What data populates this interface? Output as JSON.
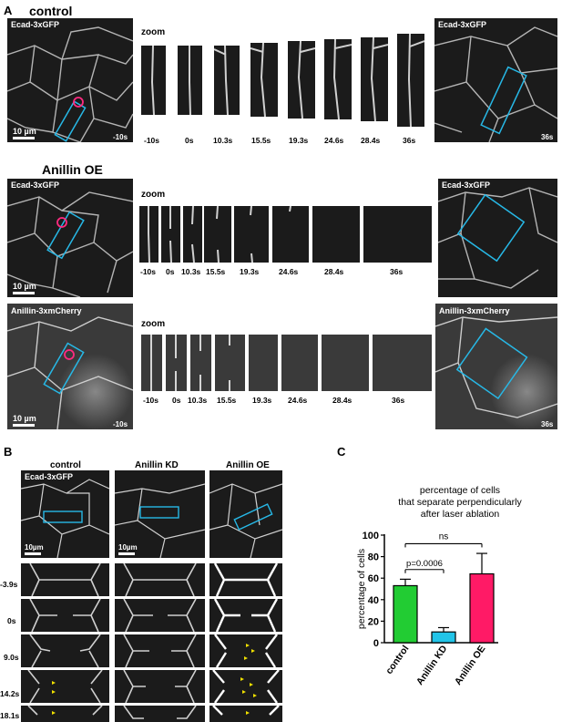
{
  "panels": {
    "a": "A",
    "b": "B",
    "c": "C"
  },
  "sectionA": {
    "control": {
      "title": "control",
      "left_label": "Ecad-3xGFP",
      "right_label": "Ecad-3xGFP",
      "zoom": "zoom",
      "scale": "10 µm",
      "left_time": "-10s",
      "right_time": "36s",
      "times": [
        "-10s",
        "0s",
        "10.3s",
        "15.5s",
        "19.3s",
        "24.6s",
        "28.4s",
        "36s"
      ]
    },
    "oe": {
      "title": "Anillin OE",
      "left_label": "Ecad-3xGFP",
      "right_label": "Ecad-3xGFP",
      "zoom": "zoom",
      "scale": "10 µm",
      "times": [
        "-10s",
        "0s",
        "10.3s",
        "15.5s",
        "19.3s",
        "24.6s",
        "28.4s",
        "36s"
      ]
    },
    "cherry": {
      "left_label": "Anillin-3xmCherry",
      "right_label": "Anillin-3xmCherry",
      "zoom": "zoom",
      "scale": "10 µm",
      "left_time": "-10s",
      "right_time": "36s",
      "times": [
        "-10s",
        "0s",
        "10.3s",
        "15.5s",
        "19.3s",
        "24.6s",
        "28.4s",
        "36s"
      ]
    }
  },
  "sectionB": {
    "columns": [
      "control",
      "Anillin KD",
      "Anillin OE"
    ],
    "label": "Ecad-3xGFP",
    "scale": "10µm",
    "times": [
      "-3.9s",
      "0s",
      "9.0s",
      "14.2s",
      "18.1s"
    ]
  },
  "chart_data": {
    "type": "bar",
    "title": "percentage of cells that separate perpendicularly after laser ablation",
    "title_lines": [
      "percentage of cells",
      "that separate perpendicularly",
      "after laser ablation"
    ],
    "ylabel": "percentage of cells",
    "ylim": [
      0,
      100
    ],
    "yticks": [
      "0",
      "20",
      "40",
      "60",
      "80",
      "100"
    ],
    "categories": [
      "control",
      "Anillin KD",
      "Anillin OE"
    ],
    "values": [
      53,
      10,
      64
    ],
    "errors": [
      6,
      4,
      19
    ],
    "colors": [
      "#22cc33",
      "#22c4e8",
      "#ff1a66"
    ],
    "annotations": {
      "ns": "ns",
      "p": "p=0.0006"
    }
  }
}
